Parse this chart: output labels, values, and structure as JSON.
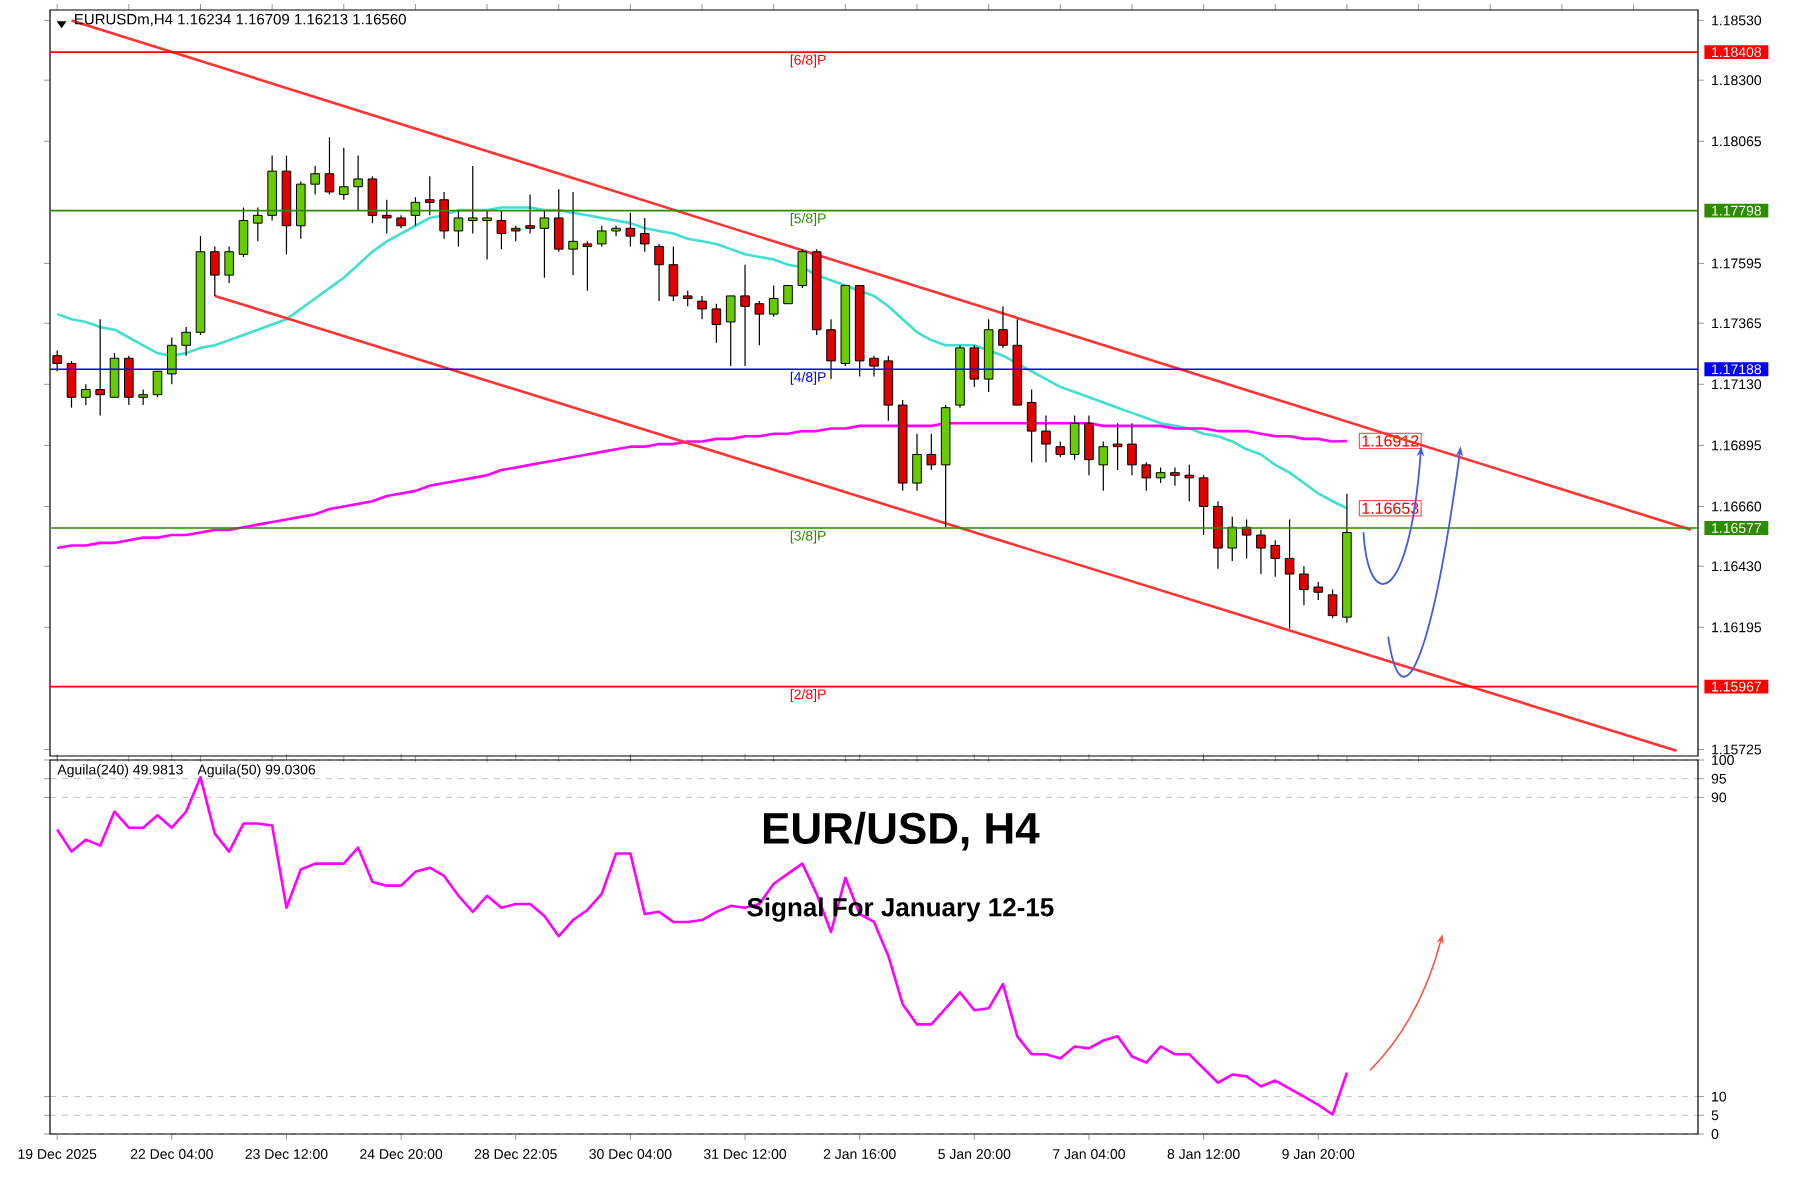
{
  "chart_data": [
    {
      "type": "candlestick",
      "title": "EURUSDm,H4  1.16234 1.16709 1.16213 1.16560",
      "categories": [
        null,
        null,
        null,
        null,
        null,
        null,
        null,
        null,
        null,
        null,
        null,
        null,
        null,
        null,
        null,
        null,
        null,
        null,
        null,
        null,
        null,
        null,
        null,
        null,
        null,
        null,
        null,
        null,
        null,
        null,
        null,
        null,
        null,
        null,
        null,
        null,
        null,
        null,
        null,
        null,
        null,
        null,
        null,
        null,
        null,
        null,
        null,
        null,
        null,
        null,
        null,
        null,
        null,
        null,
        null,
        null,
        null,
        null,
        null,
        null,
        null,
        null,
        null,
        null,
        null,
        null,
        null,
        null,
        null,
        null,
        null,
        null,
        null,
        null,
        null,
        null,
        null,
        null,
        null,
        null,
        null,
        null,
        null,
        null,
        null,
        null,
        null,
        null,
        null,
        null,
        null,
        null,
        null,
        null,
        null,
        null,
        null,
        null,
        null,
        null,
        null,
        null,
        null,
        null,
        null,
        null,
        null,
        null,
        null,
        null,
        null,
        null,
        null,
        null,
        null
      ],
      "ohlc": [
        [
          1.1724,
          1.1726,
          1.1718,
          1.1721
        ],
        [
          1.1721,
          1.1722,
          1.1704,
          1.1708
        ],
        [
          1.1708,
          1.1713,
          1.1705,
          1.1711
        ],
        [
          1.1711,
          1.1738,
          1.1701,
          1.1709
        ],
        [
          1.1708,
          1.1725,
          1.1708,
          1.1723
        ],
        [
          1.1723,
          1.1724,
          1.1705,
          1.1708
        ],
        [
          1.1708,
          1.1711,
          1.1705,
          1.1709
        ],
        [
          1.1709,
          1.1718,
          1.1708,
          1.1718
        ],
        [
          1.1717,
          1.1731,
          1.1713,
          1.1728
        ],
        [
          1.1728,
          1.1735,
          1.1724,
          1.1733
        ],
        [
          1.1733,
          1.177,
          1.1732,
          1.1764
        ],
        [
          1.1764,
          1.1766,
          1.1747,
          1.1755
        ],
        [
          1.1755,
          1.1766,
          1.1752,
          1.1764
        ],
        [
          1.1763,
          1.1781,
          1.1762,
          1.1776
        ],
        [
          1.1775,
          1.1781,
          1.1768,
          1.1778
        ],
        [
          1.1778,
          1.1801,
          1.1776,
          1.1795
        ],
        [
          1.1795,
          1.1801,
          1.1763,
          1.1774
        ],
        [
          1.1774,
          1.1791,
          1.1769,
          1.179
        ],
        [
          1.179,
          1.1797,
          1.1786,
          1.1794
        ],
        [
          1.1794,
          1.1808,
          1.1786,
          1.1787
        ],
        [
          1.1786,
          1.1804,
          1.1784,
          1.1789
        ],
        [
          1.1789,
          1.1801,
          1.178,
          1.1792
        ],
        [
          1.1792,
          1.1793,
          1.1775,
          1.1778
        ],
        [
          1.1778,
          1.1784,
          1.1771,
          1.1777
        ],
        [
          1.1777,
          1.1778,
          1.1773,
          1.1774
        ],
        [
          1.1778,
          1.1785,
          1.1774,
          1.1783
        ],
        [
          1.1784,
          1.1793,
          1.1778,
          1.1783
        ],
        [
          1.1784,
          1.1787,
          1.1769,
          1.1772
        ],
        [
          1.1772,
          1.178,
          1.1766,
          1.1777
        ],
        [
          1.1776,
          1.1797,
          1.1771,
          1.1777
        ],
        [
          1.1776,
          1.178,
          1.1761,
          1.1777
        ],
        [
          1.1776,
          1.178,
          1.1765,
          1.1771
        ],
        [
          1.1773,
          1.1774,
          1.1768,
          1.1772
        ],
        [
          1.1774,
          1.1786,
          1.1771,
          1.1773
        ],
        [
          1.1773,
          1.178,
          1.1754,
          1.1777
        ],
        [
          1.1777,
          1.1788,
          1.1764,
          1.1765
        ],
        [
          1.1765,
          1.1787,
          1.1755,
          1.1768
        ],
        [
          1.1767,
          1.1768,
          1.1749,
          1.1766
        ],
        [
          1.1767,
          1.1774,
          1.1766,
          1.1772
        ],
        [
          1.1772,
          1.1774,
          1.177,
          1.1773
        ],
        [
          1.1773,
          1.1779,
          1.1766,
          1.177
        ],
        [
          1.1771,
          1.1777,
          1.1764,
          1.1767
        ],
        [
          1.1766,
          1.1767,
          1.1745,
          1.1759
        ],
        [
          1.1759,
          1.1766,
          1.1745,
          1.1747
        ],
        [
          1.1747,
          1.1749,
          1.1743,
          1.1746
        ],
        [
          1.1745,
          1.1747,
          1.1738,
          1.1742
        ],
        [
          1.1742,
          1.1744,
          1.1729,
          1.1736
        ],
        [
          1.1737,
          1.1747,
          1.172,
          1.1747
        ],
        [
          1.1747,
          1.1759,
          1.172,
          1.1743
        ],
        [
          1.1744,
          1.1745,
          1.1728,
          1.174
        ],
        [
          1.174,
          1.1751,
          1.1739,
          1.1746
        ],
        [
          1.1744,
          1.1751,
          1.1744,
          1.1751
        ],
        [
          1.1751,
          1.1765,
          1.175,
          1.1764
        ],
        [
          1.1764,
          1.1765,
          1.1732,
          1.1734
        ],
        [
          1.1734,
          1.1738,
          1.1715,
          1.1722
        ],
        [
          1.1721,
          1.1751,
          1.172,
          1.1751
        ],
        [
          1.1751,
          1.1751,
          1.1716,
          1.1722
        ],
        [
          1.1723,
          1.1724,
          1.1716,
          1.172
        ],
        [
          1.1722,
          1.1724,
          1.1699,
          1.1705
        ],
        [
          1.1705,
          1.1707,
          1.1672,
          1.1675
        ],
        [
          1.1675,
          1.1694,
          1.1672,
          1.1686
        ],
        [
          1.1686,
          1.1694,
          1.168,
          1.1682
        ],
        [
          1.1682,
          1.1705,
          1.1658,
          1.1704
        ],
        [
          1.1705,
          1.1728,
          1.1704,
          1.1727
        ],
        [
          1.1727,
          1.1728,
          1.1712,
          1.1715
        ],
        [
          1.1715,
          1.1738,
          1.171,
          1.1734
        ],
        [
          1.1734,
          1.1743,
          1.1727,
          1.1728
        ],
        [
          1.1728,
          1.1738,
          1.1705,
          1.1705
        ],
        [
          1.1706,
          1.1711,
          1.1683,
          1.1695
        ],
        [
          1.1695,
          1.1701,
          1.1683,
          1.169
        ],
        [
          1.1689,
          1.1691,
          1.1685,
          1.1686
        ],
        [
          1.1686,
          1.1701,
          1.1684,
          1.1698
        ],
        [
          1.1698,
          1.1701,
          1.1678,
          1.1684
        ],
        [
          1.1682,
          1.1691,
          1.1672,
          1.1689
        ],
        [
          1.169,
          1.1698,
          1.168,
          1.1689
        ],
        [
          1.169,
          1.1698,
          1.1678,
          1.1682
        ],
        [
          1.1682,
          1.1683,
          1.1672,
          1.1677
        ],
        [
          1.1677,
          1.1681,
          1.1675,
          1.1679
        ],
        [
          1.1679,
          1.1681,
          1.1674,
          1.1678
        ],
        [
          1.1678,
          1.1682,
          1.1668,
          1.1677
        ],
        [
          1.1677,
          1.1678,
          1.1655,
          1.1666
        ],
        [
          1.1666,
          1.1668,
          1.1642,
          1.165
        ],
        [
          1.165,
          1.1662,
          1.1645,
          1.1658
        ],
        [
          1.1658,
          1.1661,
          1.1646,
          1.1655
        ],
        [
          1.1655,
          1.1657,
          1.164,
          1.165
        ],
        [
          1.1651,
          1.1653,
          1.1639,
          1.1646
        ],
        [
          1.1646,
          1.1661,
          1.1619,
          1.164
        ],
        [
          1.164,
          1.1643,
          1.1628,
          1.1634
        ],
        [
          1.1635,
          1.1637,
          1.163,
          1.1633
        ],
        [
          1.1632,
          1.1634,
          1.1623,
          1.1624
        ],
        [
          1.16234,
          1.16709,
          1.16213,
          1.1656
        ],
        null,
        null,
        null,
        null,
        null,
        null,
        null,
        null,
        null,
        null,
        null,
        null,
        null,
        null,
        null,
        null,
        null,
        null,
        null,
        null,
        null,
        null,
        null,
        null
      ],
      "colors": [
        "#e00000",
        "#e00000",
        "#66cc00",
        "#e00000",
        "#66cc00",
        "#e00000",
        "#66cc00",
        "#66cc00",
        "#66cc00",
        "#66cc00",
        "#66cc00",
        "#e00000",
        "#66cc00",
        "#66cc00",
        "#66cc00",
        "#66cc00",
        "#e00000",
        "#66cc00",
        "#66cc00",
        "#e00000",
        "#66cc00",
        "#66cc00",
        "#e00000",
        "#e00000",
        "#e00000",
        "#66cc00",
        "#e00000",
        "#e00000",
        "#66cc00",
        "#66cc00",
        "#66cc00",
        "#e00000",
        "#e00000",
        "#e00000",
        "#66cc00",
        "#e00000",
        "#66cc00",
        "#e00000",
        "#66cc00",
        "#66cc00",
        "#e00000",
        "#e00000",
        "#e00000",
        "#e00000",
        "#e00000",
        "#e00000",
        "#e00000",
        "#66cc00",
        "#e00000",
        "#e00000",
        "#66cc00",
        "#66cc00",
        "#66cc00",
        "#e00000",
        "#e00000",
        "#66cc00",
        "#e00000",
        "#e00000",
        "#e00000",
        "#e00000",
        "#66cc00",
        "#e00000",
        "#66cc00",
        "#66cc00",
        "#e00000",
        "#66cc00",
        "#e00000",
        "#e00000",
        "#e00000",
        "#e00000",
        "#e00000",
        "#66cc00",
        "#e00000",
        "#66cc00",
        "#e00000",
        "#e00000",
        "#e00000",
        "#66cc00",
        "#e00000",
        "#e00000",
        "#e00000",
        "#e00000",
        "#66cc00",
        "#e00000",
        "#e00000",
        "#e00000",
        "#e00000",
        "#e00000",
        "#e00000",
        "#e00000",
        "#66cc00",
        null,
        null,
        null,
        null,
        null,
        null,
        null,
        null,
        null,
        null,
        null,
        null,
        null,
        null,
        null,
        null,
        null,
        null,
        null,
        null,
        null,
        null,
        null,
        null
      ],
      "series": [
        {
          "type": "line",
          "color": "#40e0d0",
          "values": [
            1.174,
            1.1738,
            1.1737,
            1.1735,
            1.1734,
            1.1731,
            1.1728,
            1.1725,
            1.1724,
            1.1725,
            1.1727,
            1.1728,
            1.173,
            1.1732,
            1.1734,
            1.1736,
            1.1738,
            1.1742,
            1.1746,
            1.175,
            1.1754,
            1.1759,
            1.1764,
            1.1768,
            1.1771,
            1.1774,
            1.1777,
            1.1778,
            1.178,
            1.178,
            1.178,
            1.1781,
            1.1781,
            1.1781,
            1.178,
            1.178,
            1.1779,
            1.1778,
            1.1777,
            1.1776,
            1.1775,
            1.1773,
            1.1772,
            1.1771,
            1.1769,
            1.1768,
            1.1767,
            1.1765,
            1.1763,
            1.1762,
            1.1761,
            1.1759,
            1.1758,
            1.1755,
            1.1753,
            1.1751,
            1.1749,
            1.1747,
            1.1743,
            1.1738,
            1.1733,
            1.173,
            1.1728,
            1.1728,
            1.1728,
            1.1726,
            1.1724,
            1.1721,
            1.1718,
            1.1715,
            1.1712,
            1.171,
            1.1708,
            1.1706,
            1.1704,
            1.1702,
            1.17,
            1.1698,
            1.1697,
            1.1696,
            1.1694,
            1.1693,
            1.1691,
            1.1688,
            1.1686,
            1.1682,
            1.1679,
            1.1675,
            1.1671,
            1.1668,
            1.16653,
            null,
            null,
            null,
            null,
            null,
            null,
            null,
            null,
            null,
            null,
            null,
            null,
            null,
            null,
            null,
            null,
            null,
            null,
            null,
            null,
            null,
            null,
            null,
            null
          ],
          "value_labels": [
            null,
            null,
            null,
            null,
            null,
            null,
            null,
            null,
            null,
            null,
            null,
            null,
            null,
            null,
            null,
            null,
            null,
            null,
            null,
            null,
            null,
            null,
            null,
            null,
            null,
            null,
            null,
            null,
            null,
            null,
            null,
            null,
            null,
            null,
            null,
            null,
            null,
            null,
            null,
            null,
            null,
            null,
            null,
            null,
            null,
            null,
            null,
            null,
            null,
            null,
            null,
            null,
            null,
            null,
            null,
            null,
            null,
            null,
            null,
            null,
            null,
            null,
            null,
            null,
            null,
            null,
            null,
            null,
            null,
            null,
            null,
            null,
            null,
            null,
            null,
            null,
            null,
            null,
            null,
            null,
            null,
            null,
            null,
            null,
            null,
            null,
            null,
            null,
            null,
            null,
            "1.16653",
            null,
            null,
            null,
            null,
            null,
            null,
            null,
            null,
            null,
            null,
            null,
            null,
            null,
            null,
            null,
            null,
            null,
            null,
            null,
            null,
            null,
            null,
            null,
            null
          ]
        },
        {
          "type": "line",
          "color": "#ff00ff",
          "values": [
            1.165,
            1.1651,
            1.1651,
            1.1652,
            1.1652,
            1.1653,
            1.1654,
            1.1654,
            1.1655,
            1.1655,
            1.1656,
            1.1657,
            1.1657,
            1.1658,
            1.1659,
            1.166,
            1.1661,
            1.1662,
            1.1663,
            1.1665,
            1.1666,
            1.1667,
            1.1668,
            1.167,
            1.1671,
            1.1672,
            1.1674,
            1.1675,
            1.1676,
            1.1677,
            1.1678,
            1.168,
            1.1681,
            1.1682,
            1.1683,
            1.1684,
            1.1685,
            1.1686,
            1.1687,
            1.1688,
            1.1689,
            1.1689,
            1.169,
            1.169,
            1.1691,
            1.1691,
            1.1692,
            1.1692,
            1.1693,
            1.1693,
            1.1694,
            1.1694,
            1.1695,
            1.1695,
            1.1696,
            1.1696,
            1.1697,
            1.1697,
            1.1697,
            1.1697,
            1.1697,
            1.1697,
            1.1698,
            1.1698,
            1.1698,
            1.1698,
            1.1698,
            1.1698,
            1.1698,
            1.1698,
            1.1698,
            1.1698,
            1.1698,
            1.1697,
            1.1697,
            1.1697,
            1.1697,
            1.1697,
            1.1696,
            1.1696,
            1.1696,
            1.1695,
            1.1695,
            1.1695,
            1.1694,
            1.1693,
            1.1693,
            1.1692,
            1.1692,
            1.1691,
            1.16912,
            null,
            null,
            null,
            null,
            null,
            null,
            null,
            null,
            null,
            null,
            null,
            null,
            null,
            null,
            null,
            null,
            null,
            null,
            null,
            null,
            null,
            null,
            null,
            null
          ],
          "value_labels": [
            null,
            null,
            null,
            null,
            null,
            null,
            null,
            null,
            null,
            null,
            null,
            null,
            null,
            null,
            null,
            null,
            null,
            null,
            null,
            null,
            null,
            null,
            null,
            null,
            null,
            null,
            null,
            null,
            null,
            null,
            null,
            null,
            null,
            null,
            null,
            null,
            null,
            null,
            null,
            null,
            null,
            null,
            null,
            null,
            null,
            null,
            null,
            null,
            null,
            null,
            null,
            null,
            null,
            null,
            null,
            null,
            null,
            null,
            null,
            null,
            null,
            null,
            null,
            null,
            null,
            null,
            null,
            null,
            null,
            null,
            null,
            null,
            null,
            null,
            null,
            null,
            null,
            null,
            null,
            null,
            null,
            null,
            null,
            null,
            null,
            null,
            null,
            null,
            null,
            null,
            "1.16912",
            null,
            null,
            null,
            null,
            null,
            null,
            null,
            null,
            null,
            null,
            null,
            null,
            null,
            null,
            null,
            null,
            null,
            null,
            null,
            null,
            null,
            null,
            null,
            null
          ]
        },
        {
          "type": "line",
          "color": "#ff3333",
          "values": [
            null,
            1.1853,
            null,
            null,
            null,
            null,
            null,
            null,
            null,
            null,
            null,
            null,
            null,
            null,
            null,
            null,
            null,
            null,
            null,
            null,
            null,
            null,
            null,
            null,
            null,
            null,
            null,
            null,
            null,
            null,
            null,
            null,
            null,
            null,
            null,
            null,
            null,
            null,
            null,
            null,
            null,
            null,
            null,
            null,
            null,
            null,
            null,
            null,
            null,
            null,
            null,
            null,
            null,
            null,
            null,
            null,
            null,
            null,
            null,
            null,
            null,
            null,
            null,
            null,
            null,
            null,
            null,
            null,
            null,
            null,
            null,
            null,
            null,
            null,
            null,
            null,
            null,
            null,
            null,
            null,
            null,
            null,
            null,
            null,
            null,
            null,
            null,
            null,
            null,
            null,
            null,
            null,
            null,
            null,
            null,
            null,
            null,
            null,
            null,
            null,
            null,
            null,
            null,
            null,
            null,
            null,
            null,
            null,
            null,
            null,
            null,
            null,
            null,
            null,
            1.1657
          ]
        },
        {
          "type": "line",
          "color": "#ff3333",
          "values": [
            null,
            null,
            null,
            null,
            null,
            null,
            null,
            null,
            null,
            null,
            null,
            1.1747,
            null,
            null,
            null,
            null,
            null,
            null,
            null,
            null,
            null,
            null,
            null,
            null,
            null,
            null,
            null,
            null,
            null,
            null,
            null,
            null,
            null,
            null,
            null,
            null,
            null,
            null,
            null,
            null,
            null,
            null,
            null,
            null,
            null,
            null,
            null,
            null,
            null,
            null,
            null,
            null,
            null,
            null,
            null,
            null,
            null,
            null,
            null,
            null,
            null,
            null,
            null,
            null,
            null,
            null,
            null,
            null,
            null,
            null,
            null,
            null,
            null,
            null,
            null,
            null,
            null,
            null,
            null,
            null,
            null,
            null,
            null,
            null,
            null,
            null,
            null,
            null,
            null,
            null,
            null,
            null,
            null,
            null,
            null,
            null,
            null,
            null,
            null,
            null,
            null,
            null,
            null,
            null,
            null,
            null,
            null,
            null,
            null,
            null,
            null,
            null,
            null,
            1.1572,
            null
          ]
        }
      ],
      "ylim": [
        1.157,
        1.1857
      ],
      "yticks": [
        {
          "value": 1.1853,
          "label": "1.18530"
        },
        {
          "value": 1.18408,
          "label": "1.18408"
        },
        {
          "value": 1.183,
          "label": "1.18300"
        },
        1.18065,
        {
          "value": 1.17798,
          "label": "1.17798"
        },
        1.17595,
        1.17365,
        {
          "value": 1.17188,
          "label": "1.17188"
        },
        {
          "value": 1.1713,
          "label": "1.17130"
        },
        1.16895,
        {
          "value": 1.1666,
          "label": "1.16660"
        },
        {
          "value": 1.16577,
          "label": "1.16577"
        },
        {
          "value": 1.1643,
          "label": "1.16430"
        },
        1.16195,
        {
          "value": 1.15967,
          "label": "1.15967"
        },
        1.15725
      ],
      "tick_labels": "y",
      "ref_lines": [
        {
          "axis": "y",
          "value": 1.18408,
          "label": "[6/8]P",
          "color": "#ff0000"
        },
        {
          "axis": "y",
          "value": 1.17798,
          "label": "[5/8]P",
          "color": "#2e8b00"
        },
        {
          "axis": "y",
          "value": 1.17188,
          "label": "[4/8]P",
          "color": "#0000ff"
        },
        {
          "axis": "y",
          "value": 1.16577,
          "label": "[3/8]P",
          "color": "#2e8b00"
        },
        {
          "axis": "y",
          "value": 1.15967,
          "label": "[2/8]P",
          "color": "#ff0000"
        }
      ]
    },
    {
      "type": "line",
      "title": "EUR/USD, H4",
      "subtitle": "Signal For January 12-15",
      "annotations": [
        "Aguila(240) 49.9813",
        "Aguila(50) 99.0306"
      ],
      "categories": [
        "19 Dec 2025",
        null,
        null,
        null,
        null,
        null,
        null,
        null,
        "22 Dec 04:00",
        null,
        null,
        null,
        null,
        null,
        null,
        null,
        "23 Dec 12:00",
        null,
        null,
        null,
        null,
        null,
        null,
        null,
        "24 Dec 20:00",
        null,
        null,
        null,
        null,
        null,
        null,
        null,
        "28 Dec 22:05",
        null,
        null,
        null,
        null,
        null,
        null,
        null,
        "30 Dec 04:00",
        null,
        null,
        null,
        null,
        null,
        null,
        null,
        "31 Dec 12:00",
        null,
        null,
        null,
        null,
        null,
        null,
        null,
        "2 Jan 16:00",
        null,
        null,
        null,
        null,
        null,
        null,
        null,
        "5 Jan 20:00",
        null,
        null,
        null,
        null,
        null,
        null,
        null,
        "7 Jan 04:00",
        null,
        null,
        null,
        null,
        null,
        null,
        null,
        "8 Jan 12:00",
        null,
        null,
        null,
        null,
        null,
        null,
        null,
        "9 Jan 20:00",
        null,
        null,
        null,
        null,
        null,
        null,
        null,
        null,
        null,
        null,
        null,
        null,
        null,
        null,
        null,
        null,
        null,
        null,
        null,
        null,
        null,
        null,
        null,
        null,
        null,
        null
      ],
      "series": [
        {
          "color": "#ff00ff",
          "values": [
            81.4,
            75.5,
            78.7,
            77.1,
            86.2,
            81.9,
            81.9,
            85.2,
            81.9,
            86.2,
            95.4,
            80.3,
            75.5,
            83.0,
            83.0,
            82.5,
            60.5,
            70.7,
            72.3,
            72.3,
            72.3,
            76.6,
            67.4,
            66.4,
            66.4,
            70.1,
            71.2,
            69.0,
            63.7,
            59.4,
            63.7,
            60.5,
            61.5,
            61.5,
            58.3,
            52.9,
            57.2,
            59.9,
            64.2,
            75.0,
            75.0,
            58.8,
            59.4,
            56.7,
            56.7,
            57.2,
            59.4,
            61.0,
            60.5,
            61.5,
            66.9,
            69.6,
            72.3,
            64.2,
            54.0,
            68.5,
            58.8,
            56.7,
            47.6,
            34.7,
            29.3,
            29.3,
            33.6,
            37.9,
            33.1,
            33.6,
            40.1,
            26.1,
            21.3,
            21.3,
            20.2,
            23.4,
            22.9,
            25.0,
            26.1,
            20.7,
            19.1,
            23.4,
            21.3,
            21.3,
            17.5,
            13.7,
            15.9,
            15.4,
            12.7,
            14.3,
            12.1,
            10.0,
            7.8,
            5.2,
            16.4,
            null,
            null,
            null,
            null,
            null,
            null,
            null,
            null,
            null,
            null,
            null,
            null,
            null,
            null,
            null,
            null,
            null,
            null,
            null,
            null,
            null,
            null,
            null,
            null
          ]
        }
      ],
      "ylim": [
        0,
        100
      ],
      "yticks": [
        0,
        5,
        10,
        90,
        95,
        100
      ],
      "grid": "y"
    }
  ]
}
